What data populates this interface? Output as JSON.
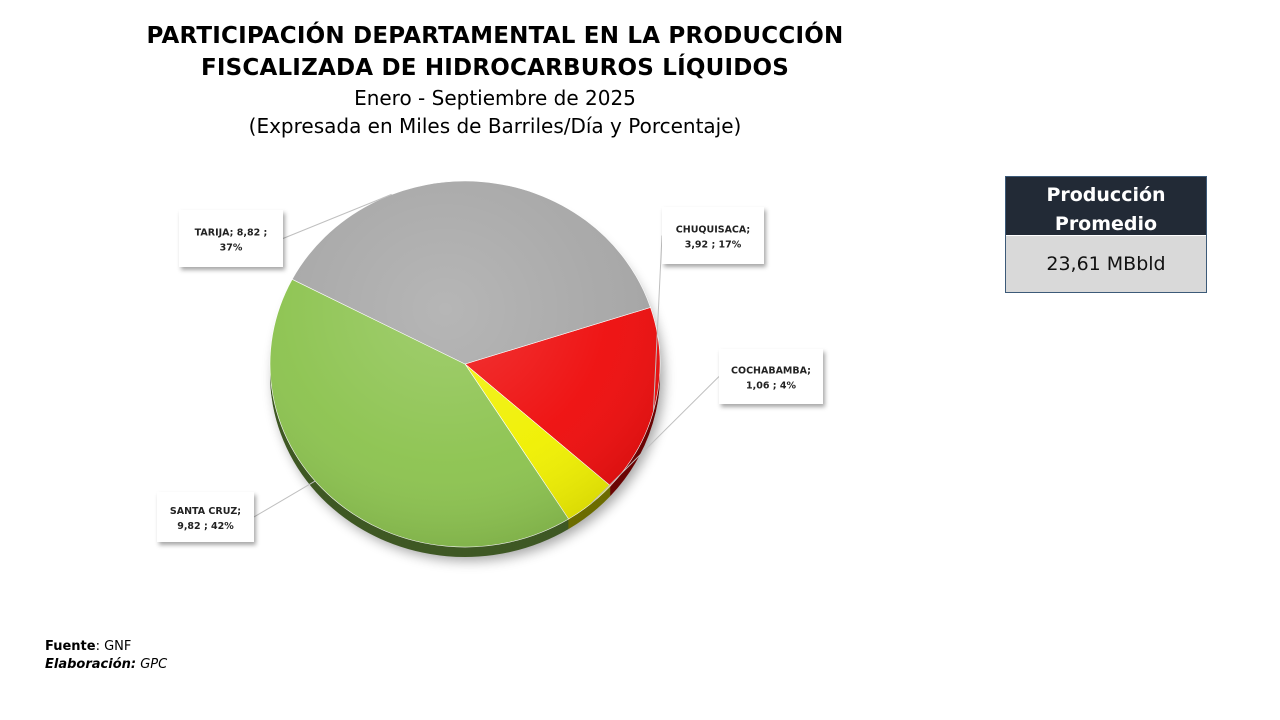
{
  "title": {
    "line1": "PARTICIPACIÓN DEPARTAMENTAL EN LA PRODUCCIÓN",
    "line2": "FISCALIZADA DE HIDROCARBUROS LÍQUIDOS",
    "subtitle1": "Enero - Septiembre de 2025",
    "subtitle2": "(Expresada en Miles de Barriles/Día y Porcentaje)"
  },
  "chart_data": {
    "type": "pie",
    "title": "PARTICIPACIÓN DEPARTAMENTAL EN LA PRODUCCIÓN FISCALIZADA DE HIDROCARBUROS LÍQUIDOS",
    "subtitle": "Enero - Septiembre de 2025 (Expresada en Miles de Barriles/Día y Porcentaje)",
    "slices": [
      {
        "name": "CHUQUISACA",
        "value": 3.92,
        "percent": 17,
        "color": "#ee0c0c",
        "label_line1": "CHUQUISACA;",
        "label_line2": "3,92 ; 17%"
      },
      {
        "name": "COCHABAMBA",
        "value": 1.06,
        "percent": 4,
        "color": "#f0f000",
        "label_line1": "COCHABAMBA;",
        "label_line2": "1,06 ; 4%"
      },
      {
        "name": "SANTA CRUZ",
        "value": 9.82,
        "percent": 42,
        "color": "#8cc34f",
        "label_line1": "SANTA CRUZ;",
        "label_line2": "9,82 ; 42%"
      },
      {
        "name": "TARIJA",
        "value": 8.82,
        "percent": 37,
        "color": "#a6a6a6",
        "label_line1": "TARIJA;   8,82 ;",
        "label_line2": "37%"
      }
    ],
    "legend": "none",
    "data_labels": "callouts"
  },
  "stat_box": {
    "header_line1": "Producción",
    "header_line2": "Promedio",
    "value": "23,61 MBbld",
    "header_color": "#222a36",
    "value_bg": "#d9d9d9"
  },
  "footer": {
    "source_label": "Fuente",
    "source_value": ": GNF",
    "author_label": "Elaboración:",
    "author_value": " GPC"
  }
}
